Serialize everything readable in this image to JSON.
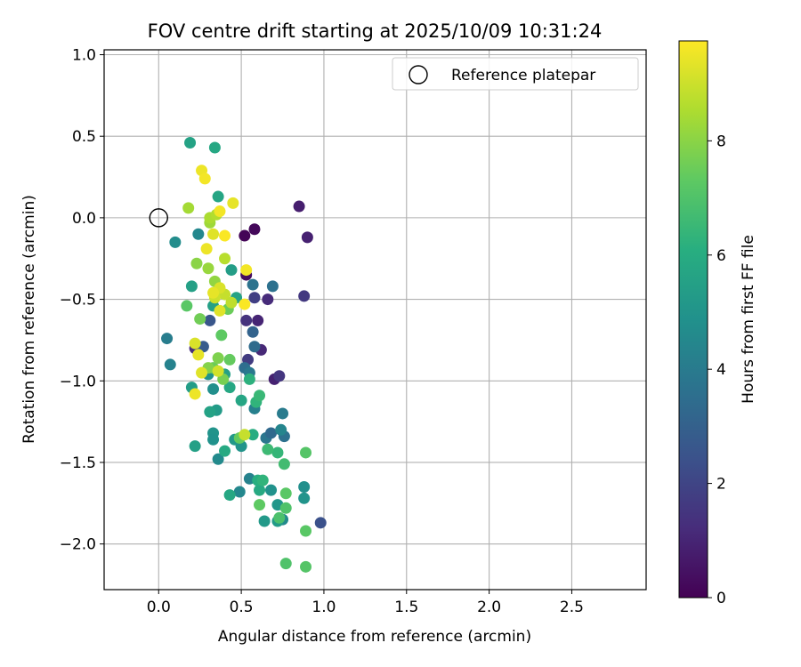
{
  "chart_data": {
    "type": "scatter",
    "title": "FOV centre drift starting at 2025/10/09 10:31:24",
    "xlabel": "Angular distance from reference (arcmin)",
    "ylabel": "Rotation from reference (arcmin)",
    "xlim": [
      -0.33,
      2.95
    ],
    "ylim": [
      -2.28,
      1.03
    ],
    "xticks": [
      0.0,
      0.5,
      1.0,
      1.5,
      2.0,
      2.5
    ],
    "xtick_labels": [
      "0.0",
      "0.5",
      "1.0",
      "1.5",
      "2.0",
      "2.5"
    ],
    "yticks": [
      1.0,
      0.5,
      0.0,
      -0.5,
      -1.0,
      -1.5,
      -2.0
    ],
    "ytick_labels": [
      "1.0",
      "0.5",
      "0.0",
      "−0.5",
      "−1.0",
      "−1.5",
      "−2.0"
    ],
    "grid": true,
    "legend": {
      "position": "top-right",
      "entries": [
        "Reference platepar"
      ]
    },
    "reference_point": {
      "x": 0.0,
      "y": 0.0
    },
    "colorbar": {
      "label": "Hours from first FF file",
      "colormap": "viridis",
      "range": [
        0,
        9.75
      ],
      "ticks": [
        0,
        2,
        4,
        6,
        8
      ],
      "tick_labels": [
        "0",
        "2",
        "4",
        "6",
        "8"
      ]
    },
    "series": [
      {
        "points": [
          {
            "x": 0.52,
            "y": -0.11,
            "t": 0.1
          },
          {
            "x": 0.58,
            "y": -0.07,
            "t": 0.2
          },
          {
            "x": 0.53,
            "y": -0.35,
            "t": 0.3
          },
          {
            "x": 0.85,
            "y": 0.07,
            "t": 0.8
          },
          {
            "x": 0.9,
            "y": -0.12,
            "t": 0.9
          },
          {
            "x": 0.88,
            "y": -0.48,
            "t": 1.6
          },
          {
            "x": 0.66,
            "y": -0.5,
            "t": 1.2
          },
          {
            "x": 0.6,
            "y": -0.63,
            "t": 1.0
          },
          {
            "x": 0.53,
            "y": -0.63,
            "t": 1.4
          },
          {
            "x": 0.62,
            "y": -0.81,
            "t": 1.1
          },
          {
            "x": 0.54,
            "y": -0.87,
            "t": 1.7
          },
          {
            "x": 0.7,
            "y": -0.99,
            "t": 0.9
          },
          {
            "x": 0.73,
            "y": -0.97,
            "t": 1.5
          },
          {
            "x": 0.58,
            "y": -0.49,
            "t": 1.8
          },
          {
            "x": 0.98,
            "y": -1.87,
            "t": 2.4
          },
          {
            "x": 0.22,
            "y": -0.8,
            "t": 1.3
          },
          {
            "x": 0.27,
            "y": -0.79,
            "t": 2.8
          },
          {
            "x": 0.31,
            "y": -0.63,
            "t": 2.6
          },
          {
            "x": 0.57,
            "y": -0.7,
            "t": 3.1
          },
          {
            "x": 0.58,
            "y": -0.79,
            "t": 3.4
          },
          {
            "x": 0.69,
            "y": -0.42,
            "t": 3.6
          },
          {
            "x": 0.57,
            "y": -0.41,
            "t": 3.7
          },
          {
            "x": 0.52,
            "y": -0.92,
            "t": 3.5
          },
          {
            "x": 0.55,
            "y": -0.95,
            "t": 3.9
          },
          {
            "x": 0.65,
            "y": -1.35,
            "t": 3.8
          },
          {
            "x": 0.68,
            "y": -1.32,
            "t": 3.3
          },
          {
            "x": 0.75,
            "y": -1.2,
            "t": 4.0
          },
          {
            "x": 0.76,
            "y": -1.34,
            "t": 3.6
          },
          {
            "x": 0.74,
            "y": -1.3,
            "t": 4.4
          },
          {
            "x": 0.58,
            "y": -1.17,
            "t": 4.2
          },
          {
            "x": 0.05,
            "y": -0.74,
            "t": 4.1
          },
          {
            "x": 0.07,
            "y": -0.9,
            "t": 4.3
          },
          {
            "x": 0.24,
            "y": -0.1,
            "t": 4.5
          },
          {
            "x": 0.1,
            "y": -0.15,
            "t": 4.7
          },
          {
            "x": 0.33,
            "y": -1.05,
            "t": 4.8
          },
          {
            "x": 0.36,
            "y": -1.48,
            "t": 4.6
          },
          {
            "x": 0.33,
            "y": -1.32,
            "t": 5.0
          },
          {
            "x": 0.33,
            "y": -1.36,
            "t": 4.9
          },
          {
            "x": 0.49,
            "y": -1.68,
            "t": 4.5
          },
          {
            "x": 0.55,
            "y": -1.6,
            "t": 4.3
          },
          {
            "x": 0.68,
            "y": -1.67,
            "t": 4.9
          },
          {
            "x": 0.72,
            "y": -1.76,
            "t": 5.1
          },
          {
            "x": 0.75,
            "y": -1.85,
            "t": 4.6
          },
          {
            "x": 0.88,
            "y": -1.72,
            "t": 5.0
          },
          {
            "x": 0.88,
            "y": -1.65,
            "t": 4.8
          },
          {
            "x": 0.64,
            "y": -1.86,
            "t": 5.2
          },
          {
            "x": 0.72,
            "y": -1.86,
            "t": 5.3
          },
          {
            "x": 0.35,
            "y": -1.18,
            "t": 5.3
          },
          {
            "x": 0.5,
            "y": -1.4,
            "t": 5.0
          },
          {
            "x": 0.46,
            "y": -1.36,
            "t": 5.2
          },
          {
            "x": 0.3,
            "y": -0.96,
            "t": 4.9
          },
          {
            "x": 0.4,
            "y": -0.96,
            "t": 5.5
          },
          {
            "x": 0.19,
            "y": 0.46,
            "t": 5.6
          },
          {
            "x": 0.34,
            "y": 0.43,
            "t": 5.8
          },
          {
            "x": 0.36,
            "y": 0.13,
            "t": 5.7
          },
          {
            "x": 0.2,
            "y": -0.42,
            "t": 5.5
          },
          {
            "x": 0.44,
            "y": -0.32,
            "t": 5.4
          },
          {
            "x": 0.47,
            "y": -0.49,
            "t": 5.6
          },
          {
            "x": 0.33,
            "y": -0.54,
            "t": 5.5
          },
          {
            "x": 0.5,
            "y": -1.12,
            "t": 5.7
          },
          {
            "x": 0.31,
            "y": -1.19,
            "t": 5.6
          },
          {
            "x": 0.22,
            "y": -1.4,
            "t": 5.5
          },
          {
            "x": 0.43,
            "y": -1.7,
            "t": 5.8
          },
          {
            "x": 0.4,
            "y": -1.43,
            "t": 5.9
          },
          {
            "x": 0.2,
            "y": -1.04,
            "t": 5.4
          },
          {
            "x": 0.43,
            "y": -1.04,
            "t": 5.8
          },
          {
            "x": 0.57,
            "y": -1.33,
            "t": 6.0
          },
          {
            "x": 0.61,
            "y": -1.67,
            "t": 5.9
          },
          {
            "x": 0.6,
            "y": -1.61,
            "t": 6.1
          },
          {
            "x": 0.55,
            "y": -0.99,
            "t": 6.2
          },
          {
            "x": 0.59,
            "y": -1.13,
            "t": 6.3
          },
          {
            "x": 0.61,
            "y": -1.09,
            "t": 6.5
          },
          {
            "x": 0.63,
            "y": -1.61,
            "t": 6.3
          },
          {
            "x": 0.72,
            "y": -1.44,
            "t": 6.4
          },
          {
            "x": 0.76,
            "y": -1.51,
            "t": 6.7
          },
          {
            "x": 0.66,
            "y": -1.42,
            "t": 6.6
          },
          {
            "x": 0.73,
            "y": -1.84,
            "t": 6.9
          },
          {
            "x": 0.77,
            "y": -1.78,
            "t": 7.0
          },
          {
            "x": 0.77,
            "y": -1.69,
            "t": 7.2
          },
          {
            "x": 0.77,
            "y": -2.12,
            "t": 7.0
          },
          {
            "x": 0.89,
            "y": -2.14,
            "t": 7.1
          },
          {
            "x": 0.89,
            "y": -1.92,
            "t": 7.2
          },
          {
            "x": 0.89,
            "y": -1.44,
            "t": 7.1
          },
          {
            "x": 0.61,
            "y": -1.76,
            "t": 7.3
          },
          {
            "x": 0.49,
            "y": -1.35,
            "t": 7.4
          },
          {
            "x": 0.17,
            "y": -0.54,
            "t": 7.2
          },
          {
            "x": 0.25,
            "y": -0.62,
            "t": 7.6
          },
          {
            "x": 0.38,
            "y": -0.72,
            "t": 7.3
          },
          {
            "x": 0.42,
            "y": -0.56,
            "t": 7.5
          },
          {
            "x": 0.43,
            "y": -0.87,
            "t": 7.4
          },
          {
            "x": 0.33,
            "y": -0.92,
            "t": 7.5
          },
          {
            "x": 0.36,
            "y": -0.86,
            "t": 7.8
          },
          {
            "x": 0.39,
            "y": -0.99,
            "t": 7.7
          },
          {
            "x": 0.3,
            "y": -0.92,
            "t": 7.9
          },
          {
            "x": 0.23,
            "y": -0.28,
            "t": 8.0
          },
          {
            "x": 0.34,
            "y": -0.39,
            "t": 8.1
          },
          {
            "x": 0.3,
            "y": -0.31,
            "t": 8.2
          },
          {
            "x": 0.31,
            "y": -0.03,
            "t": 8.3
          },
          {
            "x": 0.18,
            "y": 0.06,
            "t": 8.4
          },
          {
            "x": 0.31,
            "y": 0.0,
            "t": 8.5
          },
          {
            "x": 0.35,
            "y": 0.02,
            "t": 8.6
          },
          {
            "x": 0.4,
            "y": -0.25,
            "t": 8.7
          },
          {
            "x": 0.4,
            "y": -0.47,
            "t": 8.9
          },
          {
            "x": 0.44,
            "y": -0.52,
            "t": 8.8
          },
          {
            "x": 0.52,
            "y": -1.33,
            "t": 8.9
          },
          {
            "x": 0.34,
            "y": -0.49,
            "t": 9.0
          },
          {
            "x": 0.37,
            "y": -0.43,
            "t": 9.2
          },
          {
            "x": 0.37,
            "y": -0.57,
            "t": 9.3
          },
          {
            "x": 0.22,
            "y": -0.77,
            "t": 9.2
          },
          {
            "x": 0.24,
            "y": -0.84,
            "t": 9.4
          },
          {
            "x": 0.26,
            "y": -0.95,
            "t": 9.3
          },
          {
            "x": 0.22,
            "y": -1.08,
            "t": 9.5
          },
          {
            "x": 0.26,
            "y": 0.29,
            "t": 9.5
          },
          {
            "x": 0.28,
            "y": 0.24,
            "t": 9.6
          },
          {
            "x": 0.45,
            "y": 0.09,
            "t": 9.4
          },
          {
            "x": 0.37,
            "y": 0.04,
            "t": 9.6
          },
          {
            "x": 0.33,
            "y": -0.1,
            "t": 9.3
          },
          {
            "x": 0.4,
            "y": -0.11,
            "t": 9.7
          },
          {
            "x": 0.29,
            "y": -0.19,
            "t": 9.5
          },
          {
            "x": 0.53,
            "y": -0.32,
            "t": 9.6
          },
          {
            "x": 0.52,
            "y": -0.53,
            "t": 9.7
          },
          {
            "x": 0.33,
            "y": -0.46,
            "t": 9.4
          },
          {
            "x": 0.36,
            "y": -0.94,
            "t": 9.1
          }
        ]
      }
    ]
  }
}
